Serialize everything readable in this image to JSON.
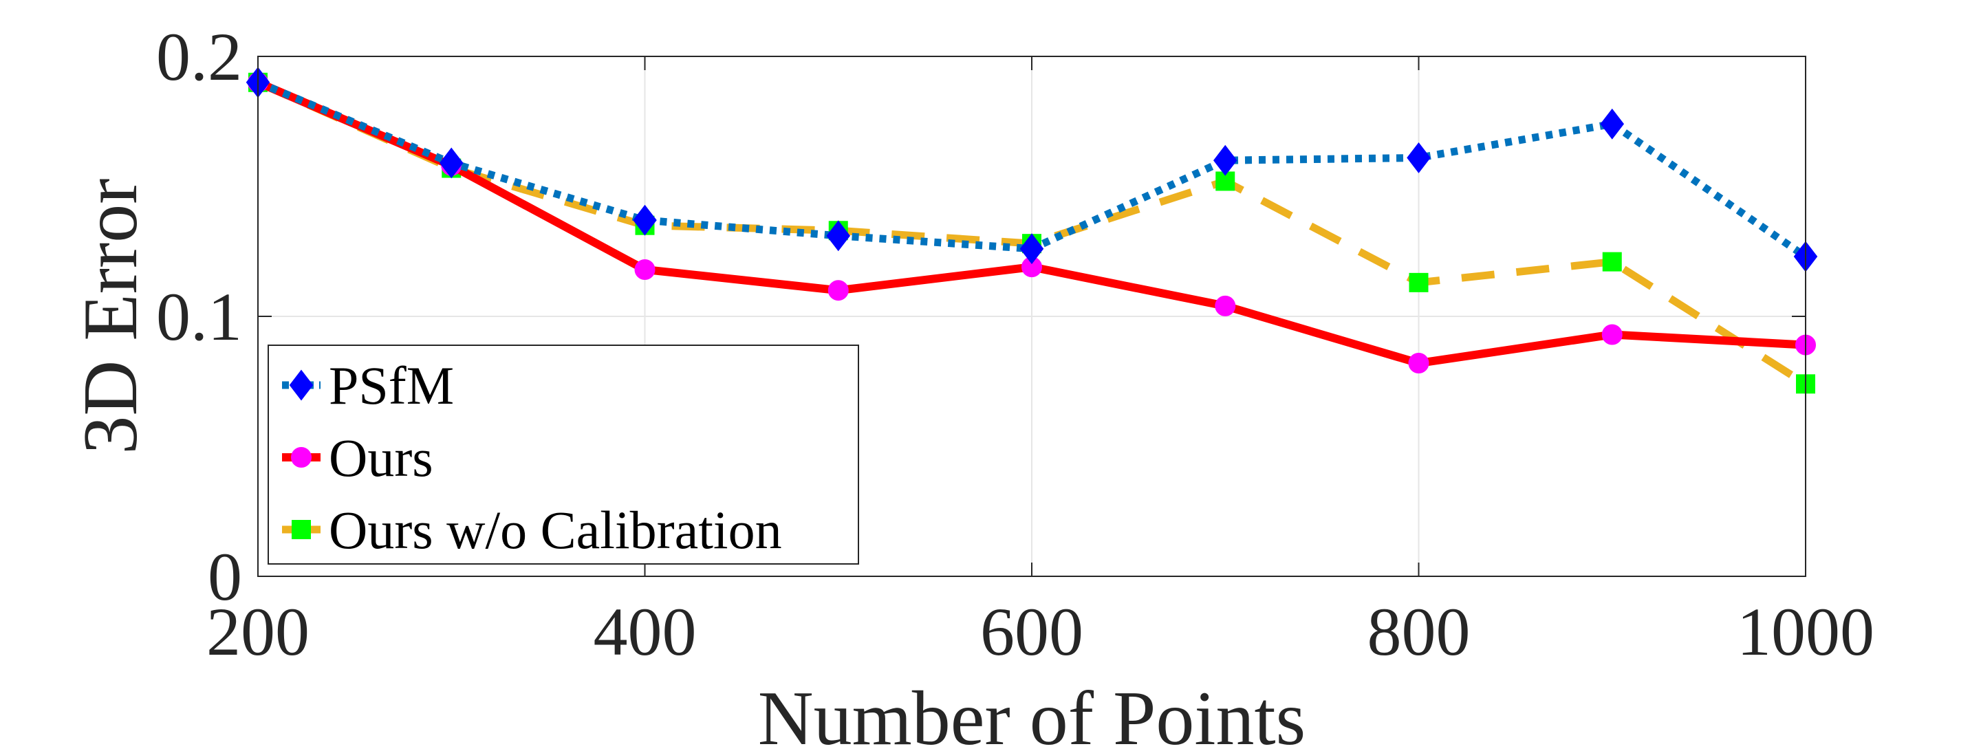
{
  "chart_data": {
    "type": "line",
    "title": "",
    "xlabel": "Number of Points",
    "ylabel": "3D Error",
    "x": [
      200,
      300,
      400,
      500,
      600,
      700,
      800,
      900,
      1000
    ],
    "xlim": [
      200,
      1000
    ],
    "ylim": [
      0,
      0.2
    ],
    "xticks": [
      200,
      400,
      600,
      800,
      1000
    ],
    "xtick_labels": [
      "200",
      "400",
      "600",
      "800",
      "1000"
    ],
    "yticks": [
      0,
      0.1,
      0.2
    ],
    "ytick_labels": [
      "0",
      "0.1",
      "0.2"
    ],
    "grid": true,
    "legend_position": "lower-left",
    "series": [
      {
        "name": "PSfM",
        "values": [
          0.19,
          0.159,
          0.137,
          0.131,
          0.126,
          0.16,
          0.161,
          0.174,
          0.123
        ],
        "line_color": "#0072BD",
        "marker_color": "#0000FF",
        "line_style": "dotted",
        "marker": "diamond"
      },
      {
        "name": "Ours",
        "values": [
          0.19,
          0.158,
          0.118,
          0.11,
          0.119,
          0.104,
          0.082,
          0.093,
          0.089
        ],
        "line_color": "#FF0000",
        "marker_color": "#FF00FF",
        "line_style": "solid",
        "marker": "circle"
      },
      {
        "name": "Ours w/o Calibration",
        "values": [
          0.19,
          0.157,
          0.135,
          0.133,
          0.128,
          0.152,
          0.113,
          0.121,
          0.074
        ],
        "line_color": "#EDB120",
        "marker_color": "#00FF00",
        "line_style": "dashed",
        "marker": "square"
      }
    ]
  }
}
